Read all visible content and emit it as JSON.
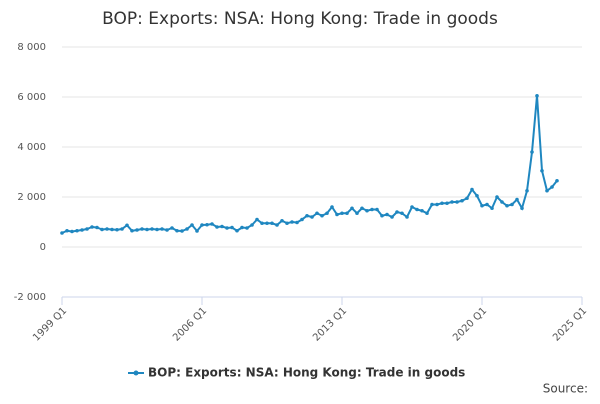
{
  "chart_data": {
    "type": "line",
    "title": "BOP: Exports: NSA: Hong Kong: Trade in goods",
    "source_label": "Source:",
    "x": [
      1999,
      1999.25,
      1999.5,
      1999.75,
      2000,
      2000.25,
      2000.5,
      2000.75,
      2001,
      2001.25,
      2001.5,
      2001.75,
      2002,
      2002.25,
      2002.5,
      2002.75,
      2003,
      2003.25,
      2003.5,
      2003.75,
      2004,
      2004.25,
      2004.5,
      2004.75,
      2005,
      2005.25,
      2005.5,
      2005.75,
      2006,
      2006.25,
      2006.5,
      2006.75,
      2007,
      2007.25,
      2007.5,
      2007.75,
      2008,
      2008.25,
      2008.5,
      2008.75,
      2009,
      2009.25,
      2009.5,
      2009.75,
      2010,
      2010.25,
      2010.5,
      2010.75,
      2011,
      2011.25,
      2011.5,
      2011.75,
      2012,
      2012.25,
      2012.5,
      2012.75,
      2013,
      2013.25,
      2013.5,
      2013.75,
      2014,
      2014.25,
      2014.5,
      2014.75,
      2015,
      2015.25,
      2015.5,
      2015.75,
      2016,
      2016.25,
      2016.5,
      2016.75,
      2017,
      2017.25,
      2017.5,
      2017.75,
      2018,
      2018.25,
      2018.5,
      2018.75,
      2019,
      2019.25,
      2019.5,
      2019.75,
      2020,
      2020.25,
      2020.5,
      2020.75,
      2021,
      2021.25,
      2021.5,
      2021.75,
      2022,
      2022.25,
      2022.5,
      2022.75,
      2023,
      2023.25,
      2023.5,
      2023.75
    ],
    "series": [
      {
        "name": "BOP: Exports: NSA: Hong Kong: Trade in goods",
        "color": "#1f87c0",
        "values": [
          560,
          650,
          620,
          650,
          680,
          720,
          800,
          780,
          700,
          720,
          700,
          690,
          720,
          870,
          650,
          680,
          720,
          700,
          720,
          700,
          720,
          680,
          760,
          650,
          640,
          720,
          880,
          640,
          880,
          890,
          920,
          800,
          820,
          760,
          780,
          650,
          780,
          760,
          880,
          1100,
          950,
          950,
          950,
          880,
          1050,
          950,
          1000,
          980,
          1100,
          1250,
          1200,
          1350,
          1250,
          1350,
          1600,
          1300,
          1350,
          1350,
          1550,
          1350,
          1550,
          1450,
          1500,
          1500,
          1250,
          1300,
          1200,
          1400,
          1350,
          1200,
          1600,
          1500,
          1450,
          1350,
          1700,
          1700,
          1750,
          1750,
          1800,
          1800,
          1850,
          1950,
          2300,
          2050,
          1650,
          1700,
          1550,
          2000,
          1800,
          1650,
          1700,
          1900,
          1550,
          2250,
          3800,
          6050,
          3050,
          2250,
          2400,
          2650
        ]
      }
    ],
    "xlim": [
      1999,
      2025
    ],
    "xticks": [
      {
        "value": 1999,
        "label": "1999 Q1"
      },
      {
        "value": 2006,
        "label": "2006 Q1"
      },
      {
        "value": 2013,
        "label": "2013 Q1"
      },
      {
        "value": 2020,
        "label": "2020 Q1"
      },
      {
        "value": 2025,
        "label": "2025 Q1"
      }
    ],
    "ylim": [
      -2000,
      8000
    ],
    "yticks": [
      {
        "value": -2000,
        "label": "-2 000"
      },
      0,
      {
        "value": 2000,
        "label": "2 000"
      },
      {
        "value": 4000,
        "label": "4 000"
      },
      {
        "value": 6000,
        "label": "6 000"
      },
      {
        "value": 8000,
        "label": "8 000"
      }
    ],
    "grid": true
  }
}
